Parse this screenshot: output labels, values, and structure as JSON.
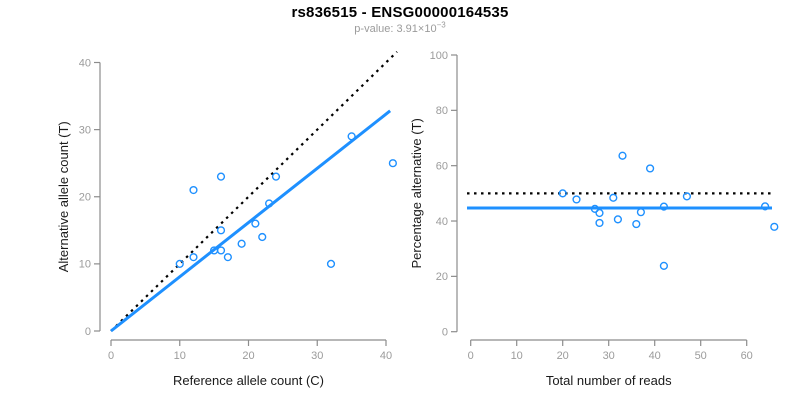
{
  "header": {
    "title": "rs836515 - ENSG00000164535",
    "pvalue_label": "p-value: 3.91×10",
    "pvalue_exponent": "−3"
  },
  "colors": {
    "background": "#ffffff",
    "point_blue": "#1E90FF",
    "fit_line_blue": "#1E90FF",
    "dotted_line_black": "#000000",
    "axis_line_gray": "#8c8c8c",
    "tick_label_gray": "#9b9b9b",
    "axis_title_black": "#1a1a1a"
  },
  "chart_data": [
    {
      "id": "allele-count-scatter",
      "type": "scatter",
      "xlabel": "Reference allele count (C)",
      "ylabel": "Alternative allele count (T)",
      "xlim": [
        0,
        41
      ],
      "ylim": [
        0,
        41
      ],
      "xticks": [
        0,
        10,
        20,
        30,
        40
      ],
      "yticks": [
        0,
        10,
        20,
        30,
        40
      ],
      "grid": false,
      "legend": null,
      "points": [
        [
          10,
          10
        ],
        [
          12,
          11
        ],
        [
          12,
          21
        ],
        [
          15,
          12
        ],
        [
          16,
          12
        ],
        [
          16,
          15
        ],
        [
          16,
          23
        ],
        [
          17,
          11
        ],
        [
          19,
          13
        ],
        [
          21,
          16
        ],
        [
          22,
          14
        ],
        [
          23,
          19
        ],
        [
          24,
          23
        ],
        [
          32,
          10
        ],
        [
          35,
          29
        ],
        [
          41,
          25
        ]
      ],
      "lines": [
        {
          "name": "identity-50pct-line",
          "style": "dotted",
          "color": "#000000",
          "x1": 0,
          "y1": 0,
          "x2": 41.6,
          "y2": 41.6
        },
        {
          "name": "fitted-ratio-line",
          "style": "solid",
          "color": "#1E90FF",
          "x1": 0,
          "y1": 0,
          "x2": 40.6,
          "y2": 32.8
        }
      ]
    },
    {
      "id": "percentage-vs-reads-scatter",
      "type": "scatter",
      "xlabel": "Total number of reads",
      "ylabel": "Percentage alternative (T)",
      "xlim": [
        0,
        66
      ],
      "ylim": [
        0,
        100
      ],
      "xticks": [
        0,
        10,
        20,
        30,
        40,
        50,
        60
      ],
      "yticks": [
        0,
        20,
        40,
        60,
        80,
        100
      ],
      "grid": false,
      "legend": null,
      "points": [
        [
          20,
          50.0
        ],
        [
          23,
          47.8
        ],
        [
          27,
          44.4
        ],
        [
          28,
          42.9
        ],
        [
          28,
          39.3
        ],
        [
          31,
          48.4
        ],
        [
          32,
          40.6
        ],
        [
          33,
          63.6
        ],
        [
          36,
          38.9
        ],
        [
          37,
          43.2
        ],
        [
          39,
          59.0
        ],
        [
          42,
          45.2
        ],
        [
          42,
          23.8
        ],
        [
          47,
          48.9
        ],
        [
          64,
          45.3
        ],
        [
          66,
          37.9
        ]
      ],
      "lines": [
        {
          "name": "fifty-percent-dotted-line",
          "style": "dotted",
          "color": "#000000",
          "x1": -0.8,
          "y1": 50,
          "x2": 65.4,
          "y2": 50
        },
        {
          "name": "fitted-percentage-line",
          "style": "solid",
          "color": "#1E90FF",
          "x1": -0.8,
          "y1": 44.7,
          "x2": 65.5,
          "y2": 44.7
        }
      ]
    }
  ]
}
